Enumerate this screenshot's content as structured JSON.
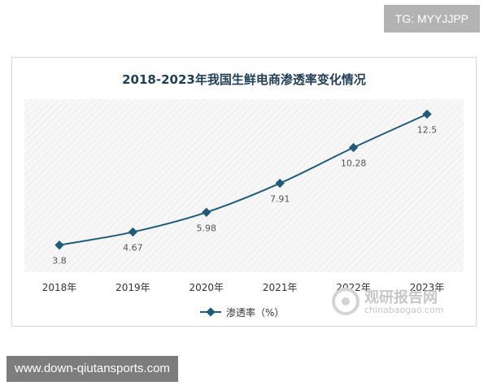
{
  "badge": "TG: MYYJJPP",
  "footer": "www.down-qiutansports.com",
  "watermark": {
    "title": "观研报告网",
    "url": "chinabaogao.com"
  },
  "chart_data": {
    "type": "line",
    "title": "2018-2023年我国生鲜电商渗透率变化情况",
    "categories": [
      "2018年",
      "2019年",
      "2020年",
      "2021年",
      "2022年",
      "2023年"
    ],
    "series": [
      {
        "name": "渗透率（%）",
        "values": [
          3.8,
          4.67,
          5.98,
          7.91,
          10.28,
          12.5
        ],
        "color": "#1f5c7a"
      }
    ],
    "value_labels": [
      "3.8",
      "4.67",
      "5.98",
      "7.91",
      "10.28",
      "12.5"
    ],
    "ylim": [
      2,
      13.5
    ],
    "grid": false,
    "legend": "bottom-center"
  }
}
